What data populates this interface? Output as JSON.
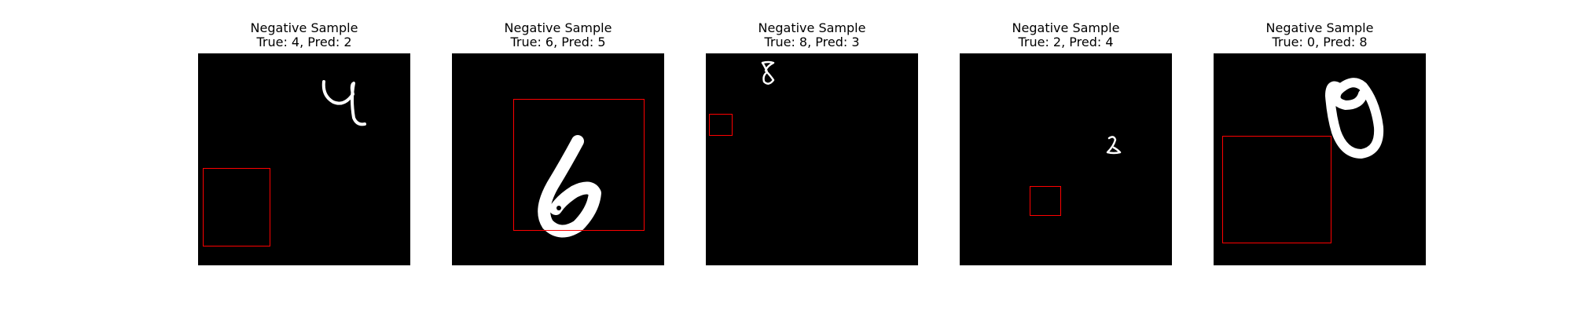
{
  "colors": {
    "background": "#ffffff",
    "image_background": "#000000",
    "digit_stroke": "#ffffff",
    "bbox": "#ff0000"
  },
  "panels": [
    {
      "title": "Negative Sample",
      "caption": "True: 4, Pred: 2"
    },
    {
      "title": "Negative Sample",
      "caption": "True: 6, Pred: 5"
    },
    {
      "title": "Negative Sample",
      "caption": "True: 8, Pred: 3"
    },
    {
      "title": "Negative Sample",
      "caption": "True: 2, Pred: 4"
    },
    {
      "title": "Negative Sample",
      "caption": "True: 0, Pred: 8"
    }
  ]
}
